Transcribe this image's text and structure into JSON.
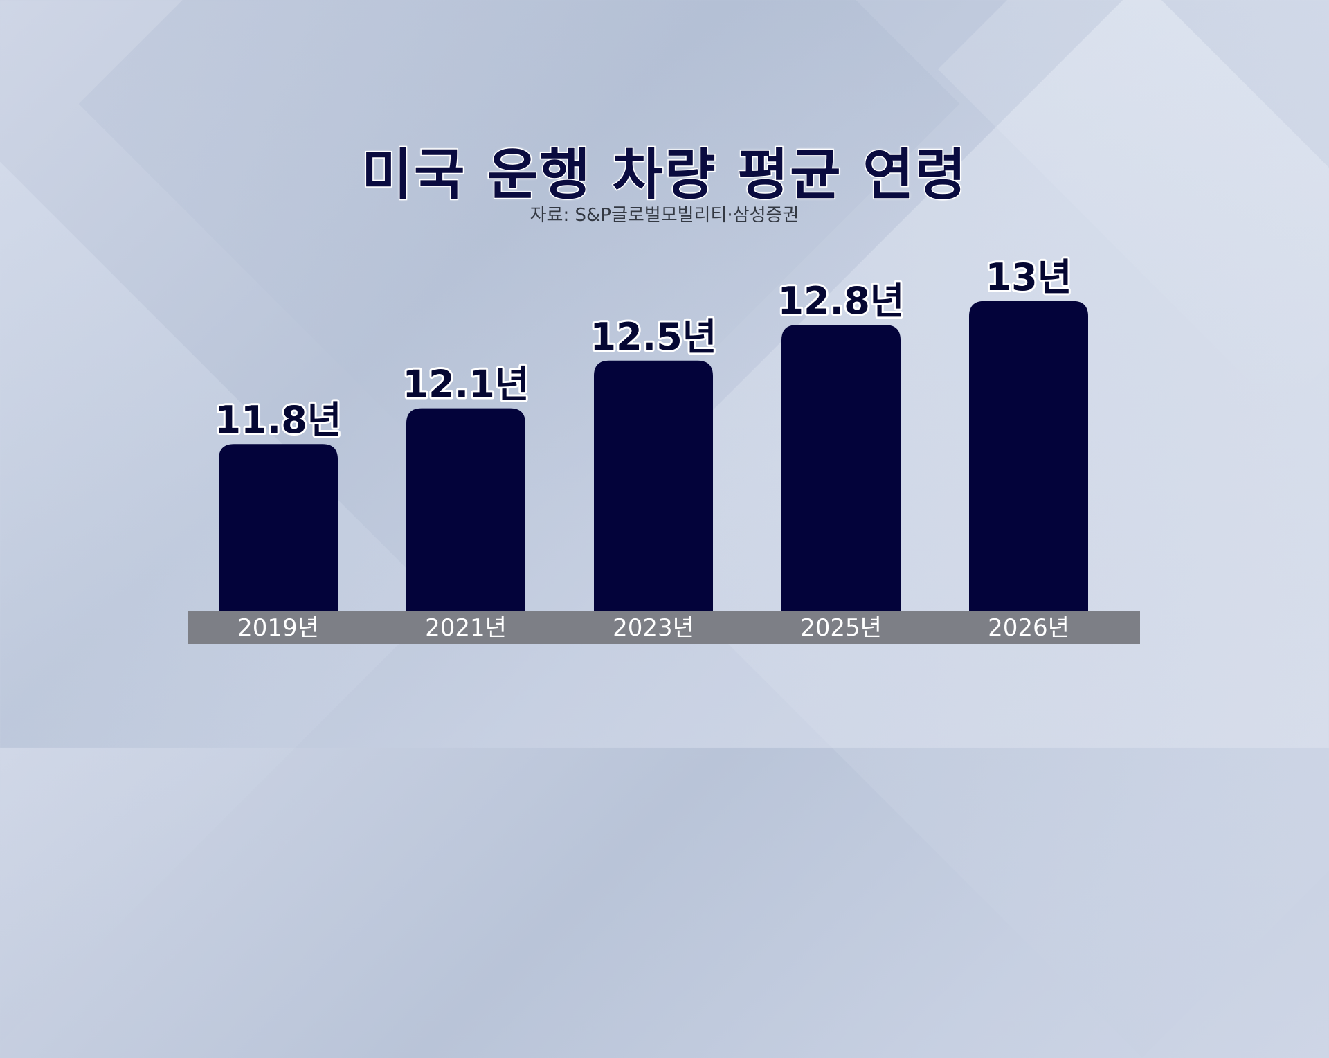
{
  "chart_data": {
    "type": "bar",
    "title": "미국 운행 차량 평균 연령",
    "subtitle": "자료: S&P글로벌모빌리티·삼성증권",
    "categories": [
      "2019년",
      "2021년",
      "2023년",
      "2025년",
      "2026년"
    ],
    "values": [
      11.8,
      12.1,
      12.5,
      12.8,
      13
    ],
    "value_labels": [
      "11.8년",
      "12.1년",
      "12.5년",
      "12.8년",
      "13년"
    ],
    "xlabel": "",
    "ylabel": "",
    "ylim": [
      10.4,
      13.3
    ],
    "grid": false,
    "legend": "none",
    "colors": {
      "bar": "#03033a",
      "axis_band": "#7d7f86",
      "title": "#0a0b3f"
    }
  }
}
